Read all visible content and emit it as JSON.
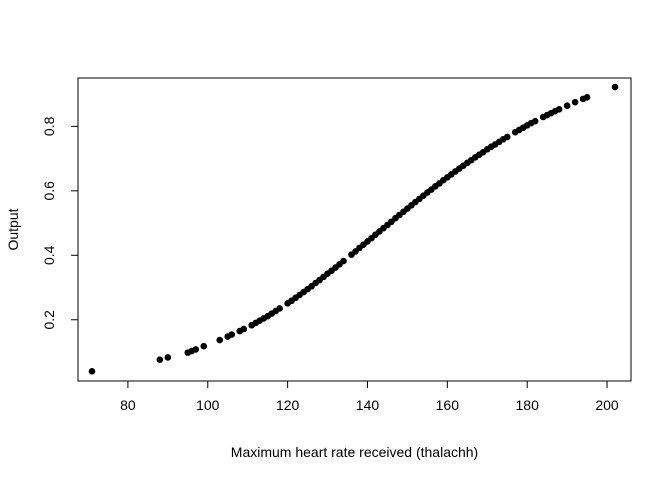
{
  "chart_data": {
    "type": "scatter",
    "title": "",
    "xlabel": "Maximum heart rate received (thalachh)",
    "ylabel": "Output",
    "xlim": [
      67.5,
      206
    ],
    "ylim": [
      0.01,
      0.95
    ],
    "xticks": [
      80,
      100,
      120,
      140,
      160,
      180,
      200
    ],
    "yticks": [
      0.2,
      0.4,
      0.6,
      0.8
    ],
    "xtick_labels": [
      "80",
      "100",
      "120",
      "140",
      "160",
      "180",
      "200"
    ],
    "ytick_labels": [
      "0.2",
      "0.4",
      "0.6",
      "0.8"
    ],
    "grid": false,
    "point_color": "#000000",
    "series": [
      {
        "x": [
          71,
          88,
          90,
          95,
          96,
          97,
          99,
          103,
          105,
          106,
          108,
          109,
          111,
          112,
          113,
          114,
          115,
          116,
          117,
          118,
          120,
          121,
          122,
          123,
          124,
          125,
          126,
          127,
          128,
          129,
          130,
          131,
          132,
          133,
          134,
          136,
          137,
          138,
          139,
          140,
          141,
          142,
          143,
          144,
          145,
          146,
          147,
          148,
          149,
          150,
          151,
          152,
          153,
          154,
          155,
          156,
          157,
          158,
          159,
          160,
          161,
          162,
          163,
          164,
          165,
          166,
          167,
          168,
          169,
          170,
          171,
          172,
          173,
          174,
          175,
          177,
          178,
          179,
          180,
          181,
          182,
          184,
          185,
          186,
          187,
          188,
          190,
          192,
          194,
          195,
          202
        ],
        "y": [
          0.04,
          0.076,
          0.083,
          0.098,
          0.103,
          0.108,
          0.118,
          0.137,
          0.148,
          0.154,
          0.165,
          0.171,
          0.183,
          0.19,
          0.197,
          0.204,
          0.211,
          0.219,
          0.227,
          0.235,
          0.251,
          0.259,
          0.268,
          0.277,
          0.286,
          0.295,
          0.304,
          0.314,
          0.323,
          0.333,
          0.343,
          0.352,
          0.362,
          0.372,
          0.382,
          0.402,
          0.412,
          0.423,
          0.433,
          0.443,
          0.453,
          0.464,
          0.474,
          0.484,
          0.494,
          0.504,
          0.515,
          0.525,
          0.535,
          0.545,
          0.555,
          0.565,
          0.575,
          0.585,
          0.595,
          0.604,
          0.614,
          0.623,
          0.633,
          0.642,
          0.651,
          0.66,
          0.669,
          0.678,
          0.687,
          0.695,
          0.704,
          0.712,
          0.72,
          0.729,
          0.737,
          0.744,
          0.752,
          0.76,
          0.767,
          0.782,
          0.789,
          0.796,
          0.803,
          0.81,
          0.816,
          0.829,
          0.835,
          0.841,
          0.847,
          0.853,
          0.864,
          0.875,
          0.885,
          0.89,
          0.922
        ]
      }
    ]
  }
}
